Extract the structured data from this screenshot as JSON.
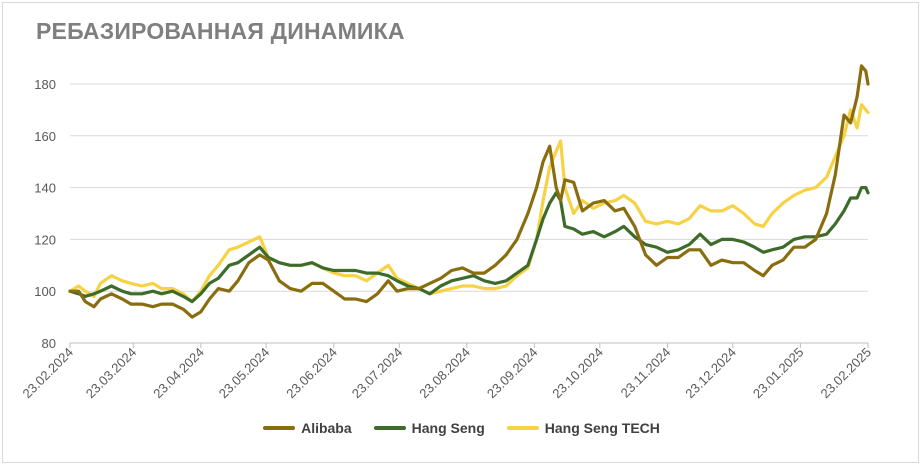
{
  "chart_data": {
    "type": "line",
    "title": "РЕБАЗИРОВАННАЯ ДИНАМИКА",
    "xlabel": "",
    "ylabel": "",
    "ylim": [
      80,
      190
    ],
    "y_ticks": [
      "80",
      "100",
      "120",
      "140",
      "160",
      "180"
    ],
    "x_ticks": [
      "23.02.2024",
      "23.03.2024",
      "23.04.2024",
      "23.05.2024",
      "23.06.2024",
      "23.07.2024",
      "23.08.2024",
      "23.09.2024",
      "23.10.2024",
      "23.11.2024",
      "23.12.2024",
      "23.01.2025",
      "23.02.2025"
    ],
    "grid": true,
    "legend_position": "bottom",
    "series": [
      {
        "name": "Alibaba",
        "color": "#8a6d0f",
        "points": [
          [
            "2024-02-23",
            100
          ],
          [
            "2024-02-27",
            100
          ],
          [
            "2024-03-01",
            96
          ],
          [
            "2024-03-05",
            94
          ],
          [
            "2024-03-08",
            97
          ],
          [
            "2024-03-13",
            99
          ],
          [
            "2024-03-18",
            97
          ],
          [
            "2024-03-22",
            95
          ],
          [
            "2024-03-27",
            95
          ],
          [
            "2024-04-01",
            94
          ],
          [
            "2024-04-05",
            95
          ],
          [
            "2024-04-10",
            95
          ],
          [
            "2024-04-15",
            93
          ],
          [
            "2024-04-19",
            90
          ],
          [
            "2024-04-23",
            92
          ],
          [
            "2024-04-27",
            97
          ],
          [
            "2024-05-01",
            101
          ],
          [
            "2024-05-06",
            100
          ],
          [
            "2024-05-10",
            104
          ],
          [
            "2024-05-15",
            111
          ],
          [
            "2024-05-20",
            114
          ],
          [
            "2024-05-24",
            112
          ],
          [
            "2024-05-29",
            104
          ],
          [
            "2024-06-03",
            101
          ],
          [
            "2024-06-08",
            100
          ],
          [
            "2024-06-13",
            103
          ],
          [
            "2024-06-18",
            103
          ],
          [
            "2024-06-23",
            100
          ],
          [
            "2024-06-28",
            97
          ],
          [
            "2024-07-03",
            97
          ],
          [
            "2024-07-08",
            96
          ],
          [
            "2024-07-13",
            99
          ],
          [
            "2024-07-18",
            104
          ],
          [
            "2024-07-22",
            100
          ],
          [
            "2024-07-27",
            101
          ],
          [
            "2024-08-01",
            101
          ],
          [
            "2024-08-06",
            103
          ],
          [
            "2024-08-11",
            105
          ],
          [
            "2024-08-16",
            108
          ],
          [
            "2024-08-21",
            109
          ],
          [
            "2024-08-26",
            107
          ],
          [
            "2024-08-31",
            107
          ],
          [
            "2024-09-05",
            110
          ],
          [
            "2024-09-10",
            114
          ],
          [
            "2024-09-15",
            120
          ],
          [
            "2024-09-20",
            130
          ],
          [
            "2024-09-24",
            140
          ],
          [
            "2024-09-27",
            150
          ],
          [
            "2024-09-30",
            156
          ],
          [
            "2024-10-03",
            140
          ],
          [
            "2024-10-05",
            135
          ],
          [
            "2024-10-07",
            143
          ],
          [
            "2024-10-11",
            142
          ],
          [
            "2024-10-15",
            131
          ],
          [
            "2024-10-20",
            134
          ],
          [
            "2024-10-25",
            135
          ],
          [
            "2024-10-30",
            131
          ],
          [
            "2024-11-03",
            132
          ],
          [
            "2024-11-08",
            125
          ],
          [
            "2024-11-13",
            114
          ],
          [
            "2024-11-18",
            110
          ],
          [
            "2024-11-23",
            113
          ],
          [
            "2024-11-28",
            113
          ],
          [
            "2024-12-03",
            116
          ],
          [
            "2024-12-08",
            116
          ],
          [
            "2024-12-13",
            110
          ],
          [
            "2024-12-18",
            112
          ],
          [
            "2024-12-23",
            111
          ],
          [
            "2024-12-28",
            111
          ],
          [
            "2025-01-02",
            108
          ],
          [
            "2025-01-06",
            106
          ],
          [
            "2025-01-10",
            110
          ],
          [
            "2025-01-15",
            112
          ],
          [
            "2025-01-20",
            117
          ],
          [
            "2025-01-25",
            117
          ],
          [
            "2025-01-30",
            120
          ],
          [
            "2025-02-04",
            130
          ],
          [
            "2025-02-08",
            145
          ],
          [
            "2025-02-12",
            168
          ],
          [
            "2025-02-15",
            165
          ],
          [
            "2025-02-18",
            175
          ],
          [
            "2025-02-20",
            187
          ],
          [
            "2025-02-22",
            185
          ],
          [
            "2025-02-23",
            180
          ]
        ]
      },
      {
        "name": "Hang Seng",
        "color": "#3d6b2a",
        "points": [
          [
            "2024-02-23",
            100
          ],
          [
            "2024-02-27",
            99
          ],
          [
            "2024-03-01",
            98
          ],
          [
            "2024-03-05",
            99
          ],
          [
            "2024-03-08",
            100
          ],
          [
            "2024-03-13",
            102
          ],
          [
            "2024-03-18",
            100
          ],
          [
            "2024-03-22",
            99
          ],
          [
            "2024-03-27",
            99
          ],
          [
            "2024-04-01",
            100
          ],
          [
            "2024-04-05",
            99
          ],
          [
            "2024-04-10",
            100
          ],
          [
            "2024-04-15",
            98
          ],
          [
            "2024-04-19",
            96
          ],
          [
            "2024-04-23",
            99
          ],
          [
            "2024-04-27",
            103
          ],
          [
            "2024-05-01",
            105
          ],
          [
            "2024-05-06",
            110
          ],
          [
            "2024-05-10",
            111
          ],
          [
            "2024-05-15",
            114
          ],
          [
            "2024-05-20",
            117
          ],
          [
            "2024-05-24",
            113
          ],
          [
            "2024-05-29",
            111
          ],
          [
            "2024-06-03",
            110
          ],
          [
            "2024-06-08",
            110
          ],
          [
            "2024-06-13",
            111
          ],
          [
            "2024-06-18",
            109
          ],
          [
            "2024-06-23",
            108
          ],
          [
            "2024-06-28",
            108
          ],
          [
            "2024-07-03",
            108
          ],
          [
            "2024-07-08",
            107
          ],
          [
            "2024-07-13",
            107
          ],
          [
            "2024-07-18",
            106
          ],
          [
            "2024-07-22",
            104
          ],
          [
            "2024-07-27",
            102
          ],
          [
            "2024-08-01",
            101
          ],
          [
            "2024-08-06",
            99
          ],
          [
            "2024-08-11",
            102
          ],
          [
            "2024-08-16",
            104
          ],
          [
            "2024-08-21",
            105
          ],
          [
            "2024-08-26",
            106
          ],
          [
            "2024-08-31",
            104
          ],
          [
            "2024-09-05",
            103
          ],
          [
            "2024-09-10",
            104
          ],
          [
            "2024-09-15",
            107
          ],
          [
            "2024-09-20",
            110
          ],
          [
            "2024-09-24",
            120
          ],
          [
            "2024-09-27",
            128
          ],
          [
            "2024-09-30",
            134
          ],
          [
            "2024-10-03",
            138
          ],
          [
            "2024-10-05",
            135
          ],
          [
            "2024-10-07",
            125
          ],
          [
            "2024-10-11",
            124
          ],
          [
            "2024-10-15",
            122
          ],
          [
            "2024-10-20",
            123
          ],
          [
            "2024-10-25",
            121
          ],
          [
            "2024-10-30",
            123
          ],
          [
            "2024-11-03",
            125
          ],
          [
            "2024-11-08",
            121
          ],
          [
            "2024-11-13",
            118
          ],
          [
            "2024-11-18",
            117
          ],
          [
            "2024-11-23",
            115
          ],
          [
            "2024-11-28",
            116
          ],
          [
            "2024-12-03",
            118
          ],
          [
            "2024-12-08",
            122
          ],
          [
            "2024-12-13",
            118
          ],
          [
            "2024-12-18",
            120
          ],
          [
            "2024-12-23",
            120
          ],
          [
            "2024-12-28",
            119
          ],
          [
            "2025-01-02",
            117
          ],
          [
            "2025-01-06",
            115
          ],
          [
            "2025-01-10",
            116
          ],
          [
            "2025-01-15",
            117
          ],
          [
            "2025-01-20",
            120
          ],
          [
            "2025-01-25",
            121
          ],
          [
            "2025-01-30",
            121
          ],
          [
            "2025-02-04",
            122
          ],
          [
            "2025-02-08",
            126
          ],
          [
            "2025-02-12",
            131
          ],
          [
            "2025-02-15",
            136
          ],
          [
            "2025-02-18",
            136
          ],
          [
            "2025-02-20",
            140
          ],
          [
            "2025-02-22",
            140
          ],
          [
            "2025-02-23",
            138
          ]
        ]
      },
      {
        "name": "Hang Seng TECH",
        "color": "#f7d245",
        "points": [
          [
            "2024-02-23",
            100
          ],
          [
            "2024-02-27",
            102
          ],
          [
            "2024-03-01",
            100
          ],
          [
            "2024-03-05",
            98
          ],
          [
            "2024-03-08",
            103
          ],
          [
            "2024-03-13",
            106
          ],
          [
            "2024-03-18",
            104
          ],
          [
            "2024-03-22",
            103
          ],
          [
            "2024-03-27",
            102
          ],
          [
            "2024-04-01",
            103
          ],
          [
            "2024-04-05",
            101
          ],
          [
            "2024-04-10",
            101
          ],
          [
            "2024-04-15",
            99
          ],
          [
            "2024-04-19",
            96
          ],
          [
            "2024-04-23",
            100
          ],
          [
            "2024-04-27",
            106
          ],
          [
            "2024-05-01",
            110
          ],
          [
            "2024-05-06",
            116
          ],
          [
            "2024-05-10",
            117
          ],
          [
            "2024-05-15",
            119
          ],
          [
            "2024-05-20",
            121
          ],
          [
            "2024-05-24",
            113
          ],
          [
            "2024-05-29",
            111
          ],
          [
            "2024-06-03",
            110
          ],
          [
            "2024-06-08",
            110
          ],
          [
            "2024-06-13",
            111
          ],
          [
            "2024-06-18",
            109
          ],
          [
            "2024-06-23",
            107
          ],
          [
            "2024-06-28",
            106
          ],
          [
            "2024-07-03",
            106
          ],
          [
            "2024-07-08",
            104
          ],
          [
            "2024-07-13",
            107
          ],
          [
            "2024-07-18",
            110
          ],
          [
            "2024-07-22",
            105
          ],
          [
            "2024-07-27",
            103
          ],
          [
            "2024-08-01",
            101
          ],
          [
            "2024-08-06",
            99
          ],
          [
            "2024-08-11",
            100
          ],
          [
            "2024-08-16",
            101
          ],
          [
            "2024-08-21",
            102
          ],
          [
            "2024-08-26",
            102
          ],
          [
            "2024-08-31",
            101
          ],
          [
            "2024-09-05",
            101
          ],
          [
            "2024-09-10",
            102
          ],
          [
            "2024-09-15",
            106
          ],
          [
            "2024-09-20",
            109
          ],
          [
            "2024-09-24",
            120
          ],
          [
            "2024-09-27",
            135
          ],
          [
            "2024-09-30",
            148
          ],
          [
            "2024-10-03",
            154
          ],
          [
            "2024-10-05",
            158
          ],
          [
            "2024-10-07",
            140
          ],
          [
            "2024-10-11",
            130
          ],
          [
            "2024-10-15",
            135
          ],
          [
            "2024-10-20",
            132
          ],
          [
            "2024-10-25",
            134
          ],
          [
            "2024-10-30",
            135
          ],
          [
            "2024-11-03",
            137
          ],
          [
            "2024-11-08",
            134
          ],
          [
            "2024-11-13",
            127
          ],
          [
            "2024-11-18",
            126
          ],
          [
            "2024-11-23",
            127
          ],
          [
            "2024-11-28",
            126
          ],
          [
            "2024-12-03",
            128
          ],
          [
            "2024-12-08",
            133
          ],
          [
            "2024-12-13",
            131
          ],
          [
            "2024-12-18",
            131
          ],
          [
            "2024-12-23",
            133
          ],
          [
            "2024-12-28",
            130
          ],
          [
            "2025-01-02",
            126
          ],
          [
            "2025-01-06",
            125
          ],
          [
            "2025-01-10",
            130
          ],
          [
            "2025-01-15",
            134
          ],
          [
            "2025-01-20",
            137
          ],
          [
            "2025-01-25",
            139
          ],
          [
            "2025-01-30",
            140
          ],
          [
            "2025-02-04",
            144
          ],
          [
            "2025-02-08",
            152
          ],
          [
            "2025-02-12",
            160
          ],
          [
            "2025-02-15",
            170
          ],
          [
            "2025-02-18",
            163
          ],
          [
            "2025-02-20",
            172
          ],
          [
            "2025-02-22",
            170
          ],
          [
            "2025-02-23",
            169
          ]
        ]
      }
    ]
  }
}
